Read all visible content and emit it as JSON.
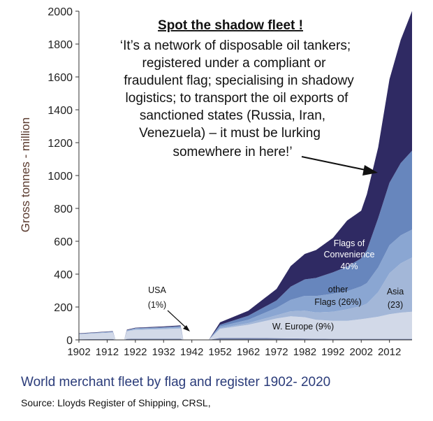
{
  "chart_data": {
    "type": "area",
    "stacked": true,
    "ylabel": "Gross tonnes - million",
    "xlabel": "",
    "ylim": [
      0,
      2000
    ],
    "yticks": [
      0,
      200,
      400,
      600,
      800,
      1000,
      1200,
      1400,
      1600,
      1800,
      2000
    ],
    "xticks": [
      1902,
      1912,
      1922,
      1932,
      1942,
      1952,
      1962,
      1972,
      1982,
      1992,
      2002,
      2012
    ],
    "xlim": [
      1902,
      2020
    ],
    "x": [
      1902,
      1912,
      1914,
      1915,
      1918,
      1919,
      1922,
      1932,
      1938,
      1939,
      1940,
      1947,
      1948,
      1952,
      1962,
      1972,
      1977,
      1982,
      1986,
      1992,
      1997,
      2002,
      2004,
      2008,
      2012,
      2016,
      2020
    ],
    "series": [
      {
        "name": "USA",
        "values": [
          4,
          5,
          5,
          0,
          0,
          6,
          7,
          7,
          7,
          0,
          0,
          0,
          0,
          12,
          12,
          10,
          9,
          8,
          7,
          6,
          6,
          6,
          6,
          6,
          6,
          6,
          6
        ]
      },
      {
        "name": "W. Europe",
        "values": [
          30,
          38,
          40,
          0,
          0,
          46,
          54,
          58,
          62,
          0,
          0,
          0,
          0,
          55,
          80,
          120,
          135,
          130,
          115,
          110,
          110,
          120,
          125,
          135,
          150,
          160,
          165
        ]
      },
      {
        "name": "Asia",
        "values": [
          1,
          2,
          2,
          0,
          0,
          3,
          4,
          5,
          6,
          0,
          0,
          0,
          0,
          5,
          10,
          20,
          30,
          40,
          45,
          55,
          70,
          80,
          90,
          150,
          250,
          300,
          330
        ]
      },
      {
        "name": "other Flags",
        "values": [
          2,
          3,
          3,
          0,
          0,
          3,
          4,
          5,
          5,
          0,
          0,
          0,
          0,
          10,
          20,
          45,
          70,
          90,
          100,
          110,
          110,
          120,
          125,
          150,
          170,
          170,
          170
        ]
      },
      {
        "name": "Flags of Convenience",
        "values": [
          1,
          1,
          1,
          0,
          0,
          1,
          2,
          3,
          4,
          0,
          0,
          0,
          0,
          10,
          25,
          45,
          80,
          100,
          110,
          130,
          150,
          170,
          200,
          300,
          380,
          440,
          480
        ]
      },
      {
        "name": "Shadow fleet area",
        "values": [
          2,
          2,
          2,
          0,
          0,
          3,
          3,
          4,
          4,
          0,
          0,
          0,
          0,
          15,
          30,
          70,
          125,
          155,
          170,
          210,
          280,
          290,
          340,
          430,
          630,
          750,
          850
        ]
      }
    ],
    "annotations": {
      "title": "Spot the shadow fleet !",
      "quote_lines": [
        "‘It’s a network of disposable oil tankers;",
        "registered under a compliant  or",
        "fraudulent flag; specialising  in shadowy",
        "logistics; to transport the oil exports of",
        "sanctioned states (Russia, Iran,",
        "Venezuela) –  it must be  lurking",
        "somewhere in here!’"
      ],
      "usa_label": [
        "USA",
        "(1%)"
      ],
      "foc_label": [
        "Flags of",
        "Convenience",
        "40%"
      ],
      "other_label": [
        "other",
        "Flags  (26%)"
      ],
      "asia_label": [
        "Asia",
        "(23)"
      ],
      "weurope_label": "W. Europe (9%)"
    },
    "colors": [
      "#6f7da8",
      "#d2d9e8",
      "#a3b7d8",
      "#8aa6d2",
      "#6786bd",
      "#2f2a63"
    ]
  },
  "caption": "World merchant fleet by flag and register 1902- 2020",
  "source": "Source: Lloyds Register of Shipping, CRSL,"
}
